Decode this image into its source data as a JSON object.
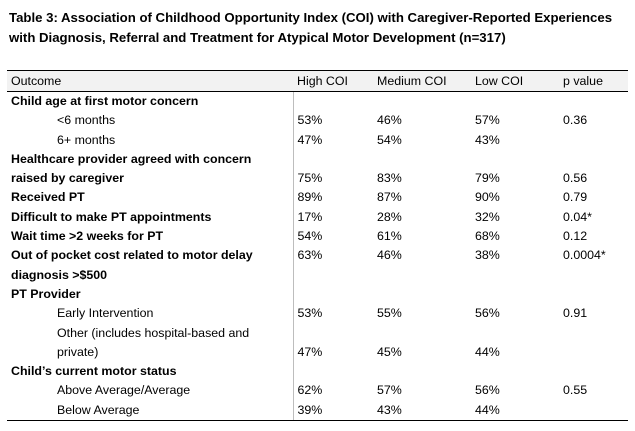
{
  "title": "Table 3: Association of Childhood Opportunity Index (COI) with Caregiver-Reported Experiences with Diagnosis, Referral and Treatment for Atypical Motor Development (n=317)",
  "headers": [
    "Outcome",
    "High COI",
    "Medium COI",
    "Low COI",
    "p value"
  ],
  "rows": [
    {
      "label": "Child age at first motor concern",
      "bold": true,
      "values": [
        "",
        "",
        "",
        ""
      ]
    },
    {
      "label": "<6 months",
      "indent": true,
      "values": [
        "53%",
        "46%",
        "57%",
        "0.36"
      ]
    },
    {
      "label": "6+ months",
      "indent": true,
      "values": [
        "47%",
        "54%",
        "43%",
        ""
      ]
    },
    {
      "label": "Healthcare provider agreed with concern raised by caregiver",
      "bold": true,
      "values": [
        "75%",
        "83%",
        "79%",
        "0.56"
      ]
    },
    {
      "label": "Received PT",
      "bold": true,
      "values": [
        "89%",
        "87%",
        "90%",
        "0.79"
      ]
    },
    {
      "label": "Difficult to make PT appointments",
      "bold": true,
      "values": [
        "17%",
        "28%",
        "32%",
        "0.04*"
      ]
    },
    {
      "label": "Wait time >2 weeks for PT",
      "bold": true,
      "values": [
        "54%",
        "61%",
        "68%",
        "0.12"
      ]
    },
    {
      "label": "Out of pocket cost related to motor delay diagnosis >$500",
      "bold": true,
      "values": [
        "63%",
        "46%",
        "38%",
        "0.0004*"
      ]
    },
    {
      "label": "PT Provider",
      "bold": true,
      "values": [
        "",
        "",
        "",
        ""
      ]
    },
    {
      "label": "Early Intervention",
      "indent": true,
      "values": [
        "53%",
        "55%",
        "56%",
        "0.91"
      ]
    },
    {
      "label": "Other (includes hospital-based and private)",
      "indent": true,
      "values": [
        "47%",
        "45%",
        "44%",
        ""
      ]
    },
    {
      "label": "Child’s current motor status",
      "bold": true,
      "values": [
        "",
        "",
        "",
        ""
      ]
    },
    {
      "label": "Above Average/Average",
      "indent": true,
      "values": [
        "62%",
        "57%",
        "56%",
        "0.55"
      ]
    },
    {
      "label": "Below Average",
      "indent": true,
      "values": [
        "39%",
        "43%",
        "44%",
        ""
      ]
    }
  ]
}
